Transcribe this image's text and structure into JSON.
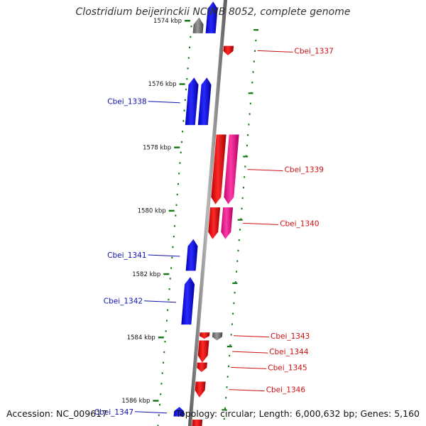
{
  "title": "Clostridium beijerinckii NCIMB 8052, complete genome",
  "footer": {
    "accession": "Accession: NC_009617",
    "summary": "Topology: circular; Length: 6,000,632 bp; Genes: 5,160"
  },
  "colors": {
    "forward_gene": "#0000ee",
    "reverse_gene": "#ee0000",
    "reverse_alt_gene": "#ee1888",
    "pseudo_gene": "#777777",
    "backbone": "#8c8c8c",
    "tick": "#1a7a1a",
    "forward_label": "#1010b0",
    "reverse_label": "#cc1010",
    "axis_label": "#111111"
  },
  "axis_ticks": [
    {
      "label": "1574 kbp",
      "kbp": 1574
    },
    {
      "label": "1576 kbp",
      "kbp": 1576
    },
    {
      "label": "1578 kbp",
      "kbp": 1578
    },
    {
      "label": "1580 kbp",
      "kbp": 1580
    },
    {
      "label": "1582 kbp",
      "kbp": 1582
    },
    {
      "label": "1584 kbp",
      "kbp": 1584
    },
    {
      "label": "1586 kbp",
      "kbp": 1586
    }
  ],
  "genes": [
    {
      "label": "",
      "strand": "+",
      "start_kbp": 1573.4,
      "end_kbp": 1574.4,
      "kind": "forward",
      "lane": 1
    },
    {
      "label": "",
      "strand": "+",
      "start_kbp": 1573.9,
      "end_kbp": 1574.4,
      "kind": "pseudo",
      "lane": 2
    },
    {
      "label": "Cbei_1337",
      "strand": "-",
      "start_kbp": 1574.8,
      "end_kbp": 1575.1,
      "kind": "reverse",
      "lane": 1
    },
    {
      "label": "Cbei_1338",
      "strand": "+",
      "start_kbp": 1575.8,
      "end_kbp": 1577.3,
      "kind": "forward",
      "lane": 2
    },
    {
      "label": "",
      "strand": "+",
      "start_kbp": 1575.8,
      "end_kbp": 1577.3,
      "kind": "forward",
      "lane": 1
    },
    {
      "label": "Cbei_1339",
      "strand": "-",
      "start_kbp": 1577.6,
      "end_kbp": 1579.8,
      "kind": "reverse",
      "lane": 1
    },
    {
      "label": "",
      "strand": "-",
      "start_kbp": 1577.6,
      "end_kbp": 1579.8,
      "kind": "reverse_alt",
      "lane": 2
    },
    {
      "label": "Cbei_1340",
      "strand": "-",
      "start_kbp": 1579.9,
      "end_kbp": 1580.9,
      "kind": "reverse",
      "lane": 1
    },
    {
      "label": "",
      "strand": "-",
      "start_kbp": 1579.9,
      "end_kbp": 1580.9,
      "kind": "reverse_alt",
      "lane": 2
    },
    {
      "label": "Cbei_1341",
      "strand": "+",
      "start_kbp": 1580.9,
      "end_kbp": 1581.9,
      "kind": "forward",
      "lane": 1
    },
    {
      "label": "Cbei_1342",
      "strand": "+",
      "start_kbp": 1582.1,
      "end_kbp": 1583.6,
      "kind": "forward",
      "lane": 1
    },
    {
      "label": "Cbei_1343",
      "strand": "-",
      "start_kbp": 1583.85,
      "end_kbp": 1584.05,
      "kind": "reverse",
      "lane": 1
    },
    {
      "label": "",
      "strand": "-",
      "start_kbp": 1583.85,
      "end_kbp": 1584.1,
      "kind": "pseudo",
      "lane": 2
    },
    {
      "label": "Cbei_1344",
      "strand": "-",
      "start_kbp": 1584.1,
      "end_kbp": 1584.8,
      "kind": "reverse",
      "lane": 1
    },
    {
      "label": "Cbei_1345",
      "strand": "-",
      "start_kbp": 1584.8,
      "end_kbp": 1585.1,
      "kind": "reverse",
      "lane": 1
    },
    {
      "label": "Cbei_1346",
      "strand": "-",
      "start_kbp": 1585.4,
      "end_kbp": 1585.9,
      "kind": "reverse",
      "lane": 1
    },
    {
      "label": "Cbei_1347",
      "strand": "+",
      "start_kbp": 1586.2,
      "end_kbp": 1586.5,
      "kind": "forward",
      "lane": 1
    },
    {
      "label": "",
      "strand": "-",
      "start_kbp": 1586.6,
      "end_kbp": 1587.0,
      "kind": "reverse",
      "lane": 1
    }
  ]
}
